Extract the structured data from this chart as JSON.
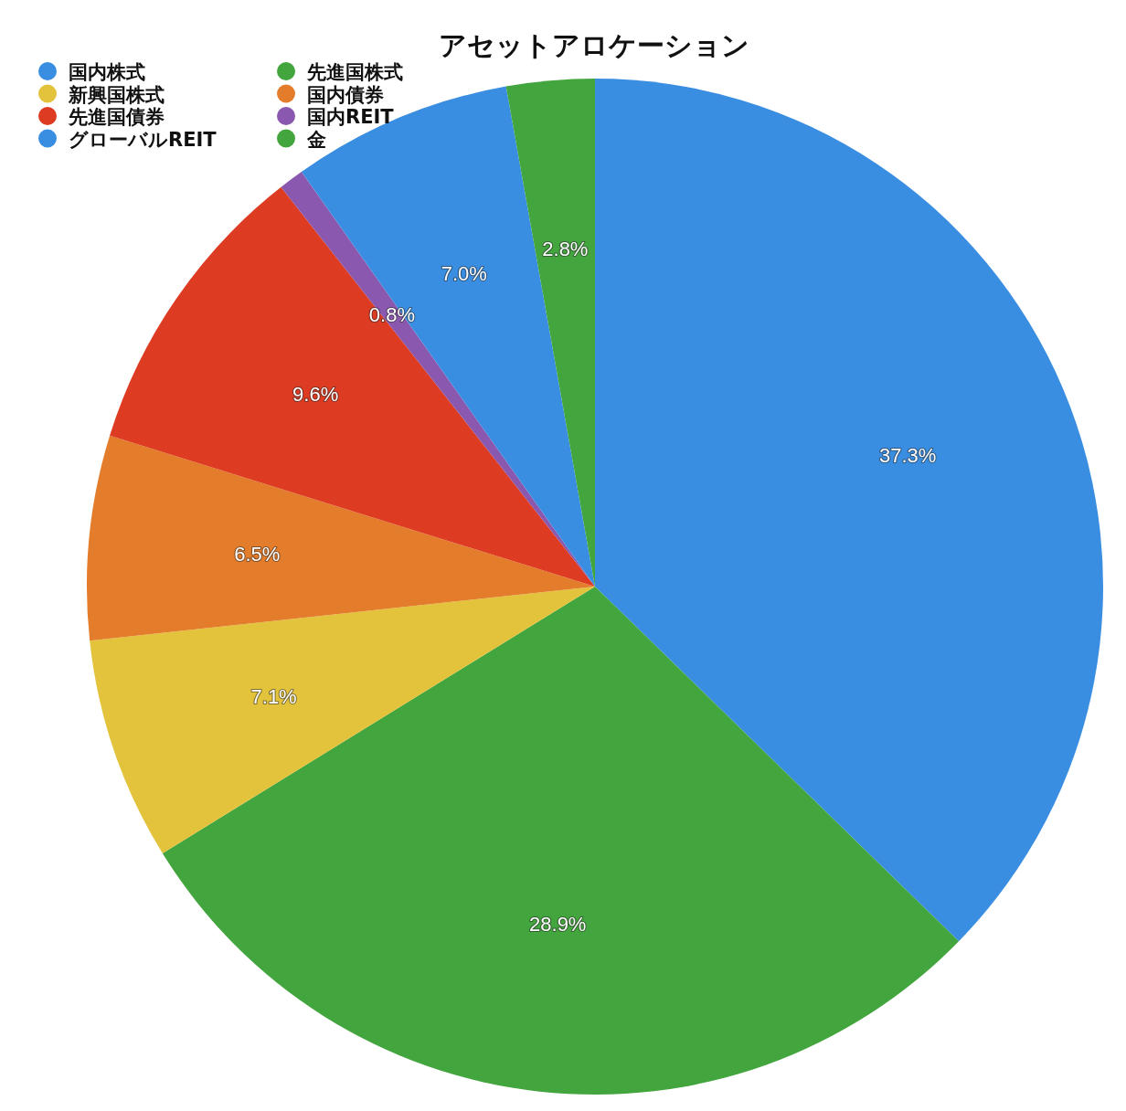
{
  "chart_data": {
    "type": "pie",
    "title": "アセットアロケーション",
    "categories": [
      "国内株式",
      "先進国株式",
      "新興国株式",
      "国内債券",
      "先進国債券",
      "国内REIT",
      "グローバルREIT",
      "金"
    ],
    "values": [
      37.3,
      28.9,
      7.1,
      6.5,
      9.6,
      0.8,
      7.0,
      2.8
    ],
    "colors": [
      "#3a8ee2",
      "#43a53d",
      "#e3c33c",
      "#e47d2b",
      "#dd3b22",
      "#8a58ae",
      "#3a8ee2",
      "#43a53d"
    ],
    "value_labels": [
      "37.3%",
      "28.9%",
      "7.1%",
      "6.5%",
      "9.6%",
      "0.8%",
      "7.0%",
      "2.8%"
    ],
    "legend": "top left"
  }
}
